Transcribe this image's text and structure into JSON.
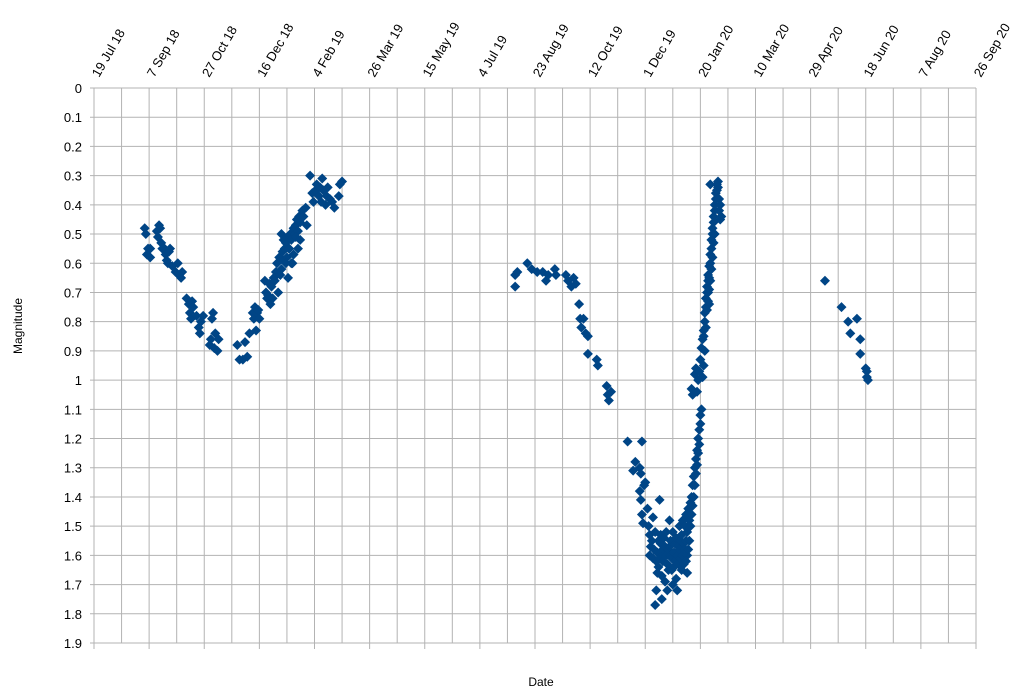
{
  "chart_data": {
    "type": "scatter",
    "title": "",
    "xlabel": "Date",
    "ylabel": "Magnitude",
    "x_axis": {
      "type": "date",
      "min": "2018-07-19",
      "max": "2020-09-26",
      "tick_interval_days": 50
    },
    "y_axis": {
      "min": 0,
      "max": 1.9,
      "reversed": true,
      "tick_step": 0.1
    },
    "grid": true,
    "legend": "none",
    "marker": {
      "shape": "diamond",
      "color": "#004586"
    },
    "x_tick_labels": [
      "19 Jul 18",
      "7 Sep 18",
      "27 Oct 18",
      "16 Dec 18",
      "4 Feb 19",
      "26 Mar 19",
      "15 May 19",
      "4 Jul 19",
      "23 Aug 19",
      "12 Oct 19",
      "1 Dec 19",
      "20 Jan 20",
      "10 Mar 20",
      "29 Apr 20",
      "18 Jun 20",
      "7 Aug 20",
      "26 Sep 20"
    ],
    "y_tick_labels": [
      "0",
      "0.1",
      "0.2",
      "0.3",
      "0.4",
      "0.5",
      "0.6",
      "0.7",
      "0.8",
      "0.9",
      "1",
      "1.1",
      "1.2",
      "1.3",
      "1.4",
      "1.5",
      "1.6",
      "1.7",
      "1.8",
      "1.9"
    ],
    "points": [
      [
        "2018-09-03",
        0.48
      ],
      [
        "2018-09-04",
        0.5
      ],
      [
        "2018-09-05",
        0.57
      ],
      [
        "2018-09-06",
        0.55
      ],
      [
        "2018-09-08",
        0.58
      ],
      [
        "2018-09-08",
        0.55
      ],
      [
        "2018-09-14",
        0.49
      ],
      [
        "2018-09-15",
        0.51
      ],
      [
        "2018-09-16",
        0.47
      ],
      [
        "2018-09-17",
        0.48
      ],
      [
        "2018-09-18",
        0.53
      ],
      [
        "2018-09-19",
        0.55
      ],
      [
        "2018-09-21",
        0.55
      ],
      [
        "2018-09-22",
        0.57
      ],
      [
        "2018-09-23",
        0.59
      ],
      [
        "2018-09-24",
        0.6
      ],
      [
        "2018-09-25",
        0.56
      ],
      [
        "2018-09-26",
        0.55
      ],
      [
        "2018-09-28",
        0.61
      ],
      [
        "2018-10-01",
        0.63
      ],
      [
        "2018-10-03",
        0.6
      ],
      [
        "2018-10-04",
        0.64
      ],
      [
        "2018-10-06",
        0.65
      ],
      [
        "2018-10-07",
        0.63
      ],
      [
        "2018-10-11",
        0.72
      ],
      [
        "2018-10-13",
        0.74
      ],
      [
        "2018-10-14",
        0.77
      ],
      [
        "2018-10-15",
        0.79
      ],
      [
        "2018-10-16",
        0.73
      ],
      [
        "2018-10-17",
        0.75
      ],
      [
        "2018-10-20",
        0.78
      ],
      [
        "2018-10-22",
        0.82
      ],
      [
        "2018-10-23",
        0.84
      ],
      [
        "2018-10-24",
        0.8
      ],
      [
        "2018-10-26",
        0.78
      ],
      [
        "2018-11-01",
        0.88
      ],
      [
        "2018-11-02",
        0.86
      ],
      [
        "2018-11-03",
        0.79
      ],
      [
        "2018-11-04",
        0.77
      ],
      [
        "2018-11-05",
        0.89
      ],
      [
        "2018-11-06",
        0.84
      ],
      [
        "2018-11-08",
        0.9
      ],
      [
        "2018-11-09",
        0.86
      ],
      [
        "2018-11-26",
        0.88
      ],
      [
        "2018-11-28",
        0.93
      ],
      [
        "2018-12-01",
        0.93
      ],
      [
        "2018-12-03",
        0.87
      ],
      [
        "2018-12-05",
        0.92
      ],
      [
        "2018-12-07",
        0.84
      ],
      [
        "2018-12-10",
        0.77
      ],
      [
        "2018-12-11",
        0.79
      ],
      [
        "2018-12-12",
        0.75
      ],
      [
        "2018-12-13",
        0.83
      ],
      [
        "2018-12-14",
        0.77
      ],
      [
        "2018-12-15",
        0.76
      ],
      [
        "2018-12-16",
        0.79
      ],
      [
        "2018-12-21",
        0.66
      ],
      [
        "2018-12-22",
        0.7
      ],
      [
        "2018-12-23",
        0.72
      ],
      [
        "2018-12-24",
        0.71
      ],
      [
        "2018-12-25",
        0.67
      ],
      [
        "2018-12-26",
        0.74
      ],
      [
        "2018-12-27",
        0.68
      ],
      [
        "2018-12-28",
        0.72
      ],
      [
        "2018-12-29",
        0.65
      ],
      [
        "2018-12-30",
        0.66
      ],
      [
        "2018-12-31",
        0.63
      ],
      [
        "2019-01-01",
        0.6
      ],
      [
        "2019-01-02",
        0.7
      ],
      [
        "2019-01-03",
        0.58
      ],
      [
        "2019-01-04",
        0.64
      ],
      [
        "2019-01-05",
        0.62
      ],
      [
        "2019-01-06",
        0.56
      ],
      [
        "2019-01-07",
        0.59
      ],
      [
        "2019-01-08",
        0.55
      ],
      [
        "2019-01-09",
        0.53
      ],
      [
        "2019-01-10",
        0.58
      ],
      [
        "2019-01-11",
        0.51
      ],
      [
        "2019-01-12",
        0.55
      ],
      [
        "2019-01-13",
        0.5
      ],
      [
        "2019-01-14",
        0.52
      ],
      [
        "2019-01-15",
        0.6
      ],
      [
        "2019-01-16",
        0.48
      ],
      [
        "2019-01-17",
        0.5
      ],
      [
        "2019-01-18",
        0.47
      ],
      [
        "2019-01-19",
        0.45
      ],
      [
        "2019-01-20",
        0.49
      ],
      [
        "2019-01-21",
        0.44
      ],
      [
        "2019-01-22",
        0.46
      ],
      [
        "2019-01-24",
        0.42
      ],
      [
        "2019-01-25",
        0.44
      ],
      [
        "2019-01-27",
        0.41
      ],
      [
        "2019-01-28",
        0.47
      ],
      [
        "2019-01-05",
        0.5
      ],
      [
        "2019-01-07",
        0.52
      ],
      [
        "2019-01-09",
        0.6
      ],
      [
        "2019-01-11",
        0.65
      ],
      [
        "2019-01-12",
        0.55
      ],
      [
        "2019-01-14",
        0.6
      ],
      [
        "2019-01-16",
        0.57
      ],
      [
        "2019-01-18",
        0.51
      ],
      [
        "2019-01-20",
        0.55
      ],
      [
        "2019-01-22",
        0.52
      ],
      [
        "2019-01-31",
        0.3
      ],
      [
        "2019-02-02",
        0.36
      ],
      [
        "2019-02-03",
        0.39
      ],
      [
        "2019-02-05",
        0.35
      ],
      [
        "2019-02-06",
        0.33
      ],
      [
        "2019-02-08",
        0.37
      ],
      [
        "2019-02-09",
        0.34
      ],
      [
        "2019-02-10",
        0.39
      ],
      [
        "2019-02-11",
        0.31
      ],
      [
        "2019-02-12",
        0.35
      ],
      [
        "2019-02-14",
        0.4
      ],
      [
        "2019-02-15",
        0.37
      ],
      [
        "2019-02-16",
        0.34
      ],
      [
        "2019-02-18",
        0.38
      ],
      [
        "2019-02-20",
        0.39
      ],
      [
        "2019-02-22",
        0.41
      ],
      [
        "2019-02-26",
        0.37
      ],
      [
        "2019-02-27",
        0.33
      ],
      [
        "2019-03-01",
        0.32
      ],
      [
        "2019-08-05",
        0.64
      ],
      [
        "2019-08-05",
        0.68
      ],
      [
        "2019-08-07",
        0.63
      ],
      [
        "2019-08-16",
        0.6
      ],
      [
        "2019-08-20",
        0.62
      ],
      [
        "2019-08-25",
        0.63
      ],
      [
        "2019-08-30",
        0.63
      ],
      [
        "2019-09-02",
        0.66
      ],
      [
        "2019-09-04",
        0.64
      ],
      [
        "2019-09-10",
        0.62
      ],
      [
        "2019-09-11",
        0.64
      ],
      [
        "2019-09-20",
        0.64
      ],
      [
        "2019-09-22",
        0.66
      ],
      [
        "2019-09-25",
        0.68
      ],
      [
        "2019-09-27",
        0.65
      ],
      [
        "2019-09-29",
        0.67
      ],
      [
        "2019-10-02",
        0.74
      ],
      [
        "2019-10-03",
        0.79
      ],
      [
        "2019-10-04",
        0.82
      ],
      [
        "2019-10-06",
        0.79
      ],
      [
        "2019-10-08",
        0.84
      ],
      [
        "2019-10-10",
        0.85
      ],
      [
        "2019-10-10",
        0.91
      ],
      [
        "2019-10-18",
        0.93
      ],
      [
        "2019-10-19",
        0.95
      ],
      [
        "2019-10-27",
        1.02
      ],
      [
        "2019-10-28",
        1.05
      ],
      [
        "2019-10-29",
        1.07
      ],
      [
        "2019-10-31",
        1.04
      ],
      [
        "2019-11-15",
        1.21
      ],
      [
        "2019-11-20",
        1.31
      ],
      [
        "2019-11-22",
        1.28
      ],
      [
        "2019-11-26",
        1.3
      ],
      [
        "2019-11-28",
        1.21
      ],
      [
        "2019-11-27",
        1.32
      ],
      [
        "2019-11-26",
        1.38
      ],
      [
        "2019-11-27",
        1.41
      ],
      [
        "2019-11-28",
        1.46
      ],
      [
        "2019-11-29",
        1.49
      ],
      [
        "2019-11-30",
        1.36
      ],
      [
        "2019-12-01",
        1.35
      ],
      [
        "2019-12-03",
        1.44
      ],
      [
        "2019-12-04",
        1.5
      ],
      [
        "2019-12-05",
        1.53
      ],
      [
        "2019-12-05",
        1.6
      ],
      [
        "2019-12-06",
        1.57
      ],
      [
        "2019-12-07",
        1.55
      ],
      [
        "2019-12-08",
        1.61
      ],
      [
        "2019-12-08",
        1.47
      ],
      [
        "2019-12-09",
        1.58
      ],
      [
        "2019-12-10",
        1.52
      ],
      [
        "2019-12-10",
        1.77
      ],
      [
        "2019-12-11",
        1.72
      ],
      [
        "2019-12-11",
        1.62
      ],
      [
        "2019-12-12",
        1.66
      ],
      [
        "2019-12-12",
        1.59
      ],
      [
        "2019-12-13",
        1.55
      ],
      [
        "2019-12-13",
        1.64
      ],
      [
        "2019-12-14",
        1.41
      ],
      [
        "2019-12-14",
        1.61
      ],
      [
        "2019-12-15",
        1.56
      ],
      [
        "2019-12-15",
        1.53
      ],
      [
        "2019-12-16",
        1.67
      ],
      [
        "2019-12-16",
        1.75
      ],
      [
        "2019-12-17",
        1.58
      ],
      [
        "2019-12-17",
        1.62
      ],
      [
        "2019-12-18",
        1.54
      ],
      [
        "2019-12-18",
        1.6
      ],
      [
        "2019-12-19",
        1.69
      ],
      [
        "2019-12-19",
        1.57
      ],
      [
        "2019-12-20",
        1.6
      ],
      [
        "2019-12-20",
        1.52
      ],
      [
        "2019-12-21",
        1.63
      ],
      [
        "2019-12-21",
        1.72
      ],
      [
        "2019-12-22",
        1.65
      ],
      [
        "2019-12-22",
        1.58
      ],
      [
        "2019-12-23",
        1.48
      ],
      [
        "2019-12-23",
        1.57
      ],
      [
        "2019-12-24",
        1.6
      ],
      [
        "2019-12-24",
        1.55
      ],
      [
        "2019-12-25",
        1.61
      ],
      [
        "2019-12-25",
        1.65
      ],
      [
        "2019-12-26",
        1.52
      ],
      [
        "2019-12-26",
        1.7
      ],
      [
        "2019-12-27",
        1.59
      ],
      [
        "2019-12-27",
        1.64
      ],
      [
        "2019-12-28",
        1.56
      ],
      [
        "2019-12-28",
        1.62
      ],
      [
        "2019-12-29",
        1.68
      ],
      [
        "2019-12-29",
        1.54
      ],
      [
        "2019-12-30",
        1.6
      ],
      [
        "2019-12-30",
        1.72
      ],
      [
        "2019-12-31",
        1.57
      ],
      [
        "2019-12-31",
        1.63
      ],
      [
        "2020-01-01",
        1.58
      ],
      [
        "2020-01-01",
        1.5
      ],
      [
        "2020-01-02",
        1.61
      ],
      [
        "2020-01-02",
        1.55
      ],
      [
        "2020-01-03",
        1.53
      ],
      [
        "2020-01-03",
        1.65
      ],
      [
        "2020-01-04",
        1.6
      ],
      [
        "2020-01-04",
        1.48
      ],
      [
        "2020-01-05",
        1.56
      ],
      [
        "2020-01-05",
        1.63
      ],
      [
        "2020-01-06",
        1.5
      ],
      [
        "2020-01-06",
        1.58
      ],
      [
        "2020-01-07",
        1.55
      ],
      [
        "2020-01-07",
        1.46
      ],
      [
        "2020-01-08",
        1.52
      ],
      [
        "2020-01-08",
        1.6
      ],
      [
        "2020-01-09",
        1.5
      ],
      [
        "2020-01-09",
        1.44
      ],
      [
        "2020-01-10",
        1.48
      ],
      [
        "2020-01-10",
        1.55
      ],
      [
        "2020-01-11",
        1.42
      ],
      [
        "2020-01-11",
        1.5
      ],
      [
        "2020-01-12",
        1.46
      ],
      [
        "2020-01-12",
        1.4
      ],
      [
        "2020-01-13",
        1.43
      ],
      [
        "2020-01-13",
        1.36
      ],
      [
        "2020-01-14",
        1.4
      ],
      [
        "2020-01-14",
        1.33
      ],
      [
        "2020-01-15",
        1.36
      ],
      [
        "2020-01-15",
        1.3
      ],
      [
        "2020-01-16",
        1.32
      ],
      [
        "2020-01-16",
        1.27
      ],
      [
        "2020-01-17",
        1.29
      ],
      [
        "2020-01-17",
        1.24
      ],
      [
        "2020-01-18",
        1.25
      ],
      [
        "2020-01-18",
        1.2
      ],
      [
        "2020-01-19",
        1.22
      ],
      [
        "2020-01-19",
        1.17
      ],
      [
        "2020-01-20",
        1.15
      ],
      [
        "2020-01-20",
        1.12
      ],
      [
        "2020-01-21",
        1.1
      ],
      [
        "2020-01-07",
        1.62
      ],
      [
        "2020-01-08",
        1.66
      ],
      [
        "2020-01-09",
        1.58
      ],
      [
        "2020-01-13",
        1.05
      ],
      [
        "2020-01-12",
        1.03
      ],
      [
        "2020-01-15",
        0.98
      ],
      [
        "2020-01-16",
        0.96
      ],
      [
        "2020-01-18",
        1.0
      ],
      [
        "2020-01-17",
        1.04
      ],
      [
        "2020-01-19",
        0.97
      ],
      [
        "2020-01-20",
        0.93
      ],
      [
        "2020-01-21",
        0.89
      ],
      [
        "2020-01-22",
        0.86
      ],
      [
        "2020-01-23",
        0.83
      ],
      [
        "2020-01-24",
        0.8
      ],
      [
        "2020-01-24",
        0.77
      ],
      [
        "2020-01-25",
        0.75
      ],
      [
        "2020-01-25",
        0.72
      ],
      [
        "2020-01-26",
        0.7
      ],
      [
        "2020-01-26",
        0.68
      ],
      [
        "2020-01-27",
        0.66
      ],
      [
        "2020-01-27",
        0.64
      ],
      [
        "2020-01-28",
        0.65
      ],
      [
        "2020-01-28",
        0.61
      ],
      [
        "2020-01-29",
        0.6
      ],
      [
        "2020-01-29",
        0.57
      ],
      [
        "2020-01-30",
        0.55
      ],
      [
        "2020-01-30",
        0.52
      ],
      [
        "2020-01-31",
        0.5
      ],
      [
        "2020-01-31",
        0.48
      ],
      [
        "2020-02-01",
        0.46
      ],
      [
        "2020-02-01",
        0.44
      ],
      [
        "2020-02-02",
        0.42
      ],
      [
        "2020-02-02",
        0.4
      ],
      [
        "2020-02-03",
        0.38
      ],
      [
        "2020-02-03",
        0.36
      ],
      [
        "2020-02-04",
        0.35
      ],
      [
        "2020-02-04",
        0.33
      ],
      [
        "2020-02-05",
        0.34
      ],
      [
        "2020-02-05",
        0.32
      ],
      [
        "2020-02-06",
        0.38
      ],
      [
        "2020-02-06",
        0.42
      ],
      [
        "2020-02-07",
        0.45
      ],
      [
        "2020-02-07",
        0.4
      ],
      [
        "2020-02-08",
        0.44
      ],
      [
        "2020-01-27",
        0.7
      ],
      [
        "2020-01-28",
        0.74
      ],
      [
        "2020-01-29",
        0.66
      ],
      [
        "2020-01-30",
        0.62
      ],
      [
        "2020-01-31",
        0.58
      ],
      [
        "2020-02-01",
        0.53
      ],
      [
        "2020-02-02",
        0.5
      ],
      [
        "2020-01-29",
        0.33
      ],
      [
        "2020-01-25",
        0.82
      ],
      [
        "2020-01-24",
        0.9
      ],
      [
        "2020-01-23",
        0.95
      ],
      [
        "2020-01-22",
        0.99
      ],
      [
        "2020-01-23",
        0.85
      ],
      [
        "2020-01-26",
        0.76
      ],
      [
        "2020-01-27",
        0.73
      ],
      [
        "2020-01-28",
        0.69
      ],
      [
        "2020-05-12",
        0.66
      ],
      [
        "2020-05-27",
        0.75
      ],
      [
        "2020-06-02",
        0.8
      ],
      [
        "2020-06-04",
        0.84
      ],
      [
        "2020-06-10",
        0.79
      ],
      [
        "2020-06-13",
        0.86
      ],
      [
        "2020-06-13",
        0.91
      ],
      [
        "2020-06-18",
        0.96
      ],
      [
        "2020-06-19",
        0.99
      ],
      [
        "2020-06-19",
        0.97
      ],
      [
        "2020-06-20",
        1.0
      ]
    ]
  }
}
